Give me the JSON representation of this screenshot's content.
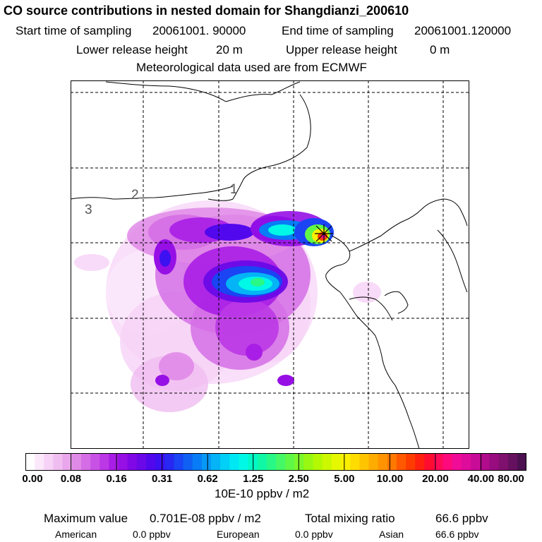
{
  "title": "CO  source contributions in nested domain for Shangdianzi_200610",
  "header": {
    "start_label": "Start time of sampling",
    "start_value": "20061001. 90000",
    "end_label": "End time of sampling",
    "end_value": "20061001.120000",
    "lower_label": "Lower release height",
    "lower_value": "20 m",
    "upper_label": "Upper release height",
    "upper_value": "0 m",
    "met_line": "Meteorological data used are from ECMWF"
  },
  "map": {
    "region_labels": [
      "1",
      "2",
      "3"
    ],
    "receptor_marker": "plus-x-marker"
  },
  "colorbar": {
    "tick_labels": [
      "0.00",
      "0.08",
      "0.16",
      "0.31",
      "0.62",
      "1.25",
      "2.50",
      "5.00",
      "10.00",
      "20.00",
      "40.00",
      "80.00"
    ],
    "units": "10E-10 ppbv / m2",
    "colors": [
      "#ffffff",
      "#fbe8fb",
      "#f6d2f6",
      "#f0bdf0",
      "#e9a6ec",
      "#e08ae8",
      "#d56ee6",
      "#c952e6",
      "#bb38e6",
      "#a91ee6",
      "#9610e6",
      "#8008e6",
      "#6a08e8",
      "#5208ec",
      "#3c10f0",
      "#2828f2",
      "#1a44f4",
      "#1060f4",
      "#087cf6",
      "#0698f6",
      "#04b4f6",
      "#02d0f6",
      "#00e8f4",
      "#00f8e6",
      "#00f8c6",
      "#10f8a6",
      "#28f886",
      "#44f866",
      "#60f846",
      "#7cf82a",
      "#98f812",
      "#b4f804",
      "#ccf800",
      "#e6f800",
      "#f8f000",
      "#ffdc00",
      "#ffc400",
      "#ffac00",
      "#ff9400",
      "#ff7800",
      "#ff5800",
      "#ff3c00",
      "#ff2010",
      "#ff0c30",
      "#ff0a58",
      "#ff0a7c",
      "#f00c96",
      "#de0c9a",
      "#c80c98",
      "#b00c8c",
      "#980c80",
      "#80106e",
      "#661060",
      "#4c1050"
    ]
  },
  "footer": {
    "max_label": "Maximum value",
    "max_value": "0.701E-08 ppbv / m2",
    "total_label": "Total mixing ratio",
    "total_value": "66.6 ppbv",
    "american_label": "American",
    "american_value": "0.0 ppbv",
    "european_label": "European",
    "european_value": "0.0 ppbv",
    "asian_label": "Asian",
    "asian_value": "66.6 ppbv"
  }
}
